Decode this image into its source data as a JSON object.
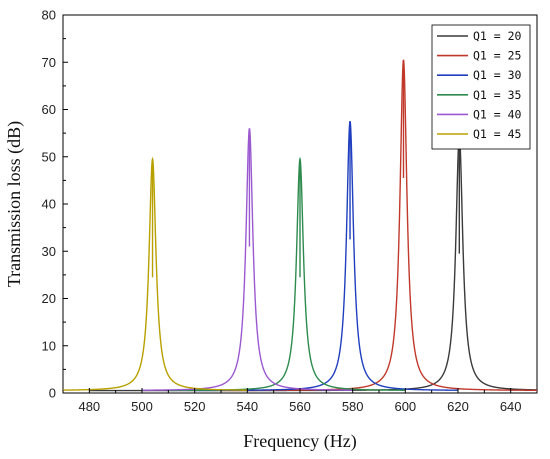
{
  "chart_data": {
    "type": "line",
    "xlabel": "Frequency (Hz)",
    "ylabel": "Transmission loss (dB)",
    "xlim": [
      470,
      650
    ],
    "ylim": [
      0,
      80
    ],
    "xticks": [
      480,
      500,
      520,
      540,
      560,
      580,
      600,
      620,
      640
    ],
    "yticks": [
      0,
      10,
      20,
      30,
      40,
      50,
      60,
      70,
      80
    ],
    "legend_position": "top-right",
    "grid": false,
    "series": [
      {
        "name": "Q1 = 20",
        "color": "#3a3a3a",
        "x_start": 480,
        "x_end": 650,
        "peak_freq": 620.5,
        "peak_db": 54.5,
        "base_db": 0.5
      },
      {
        "name": "Q1 = 25",
        "color": "#c0392b",
        "x_start": 530,
        "x_end": 650,
        "peak_freq": 599.3,
        "peak_db": 70.5,
        "base_db": 0.5
      },
      {
        "name": "Q1 = 30",
        "color": "#1f3fbf",
        "x_start": 520,
        "x_end": 620,
        "peak_freq": 579.0,
        "peak_db": 57.5,
        "base_db": 0.5
      },
      {
        "name": "Q1 = 35",
        "color": "#2e8b4e",
        "x_start": 510,
        "x_end": 600,
        "peak_freq": 560.0,
        "peak_db": 49.5,
        "base_db": 0.5
      },
      {
        "name": "Q1 = 40",
        "color": "#9b59d0",
        "x_start": 500,
        "x_end": 580,
        "peak_freq": 540.8,
        "peak_db": 56.0,
        "base_db": 0.5
      },
      {
        "name": "Q1 = 45",
        "color": "#b8a000",
        "x_start": 470,
        "x_end": 540,
        "peak_freq": 504.0,
        "peak_db": 49.5,
        "base_db": 0.5
      }
    ]
  }
}
